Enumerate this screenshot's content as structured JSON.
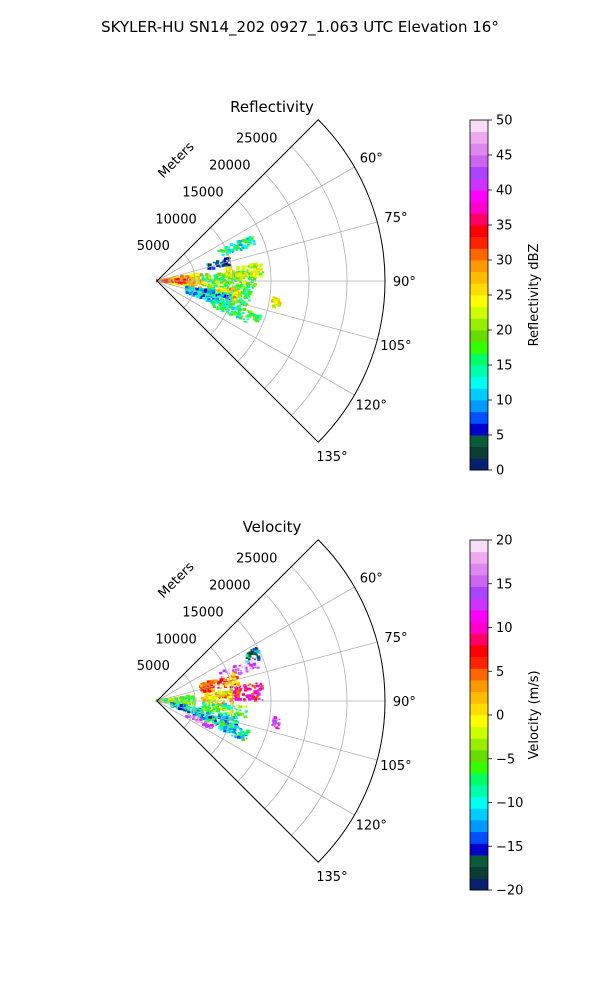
{
  "figure": {
    "suptitle": "SKYLER-HU  SN14_202  0927_1.063 UTC Elevation 16°"
  },
  "chart_data": [
    {
      "type": "heatmap",
      "projection": "polar-sector",
      "title": "Reflectivity",
      "radial_label": "Meters",
      "radial_ticks": [
        5000,
        10000,
        15000,
        20000,
        25000
      ],
      "radial_tick_labels": [
        "5000",
        "10000",
        "15000",
        "20000",
        "25000"
      ],
      "rmax": 30000,
      "azimuth_range_deg": [
        45,
        135
      ],
      "azimuth_ticks": [
        60,
        75,
        90,
        105,
        120,
        135
      ],
      "azimuth_tick_labels": [
        "60°",
        "75°",
        "90°",
        "105°",
        "120°",
        "135°"
      ],
      "grid": true,
      "colorbar": {
        "label": "Reflectivity dBZ",
        "range": [
          0,
          50
        ],
        "ticks": [
          0,
          5,
          10,
          15,
          20,
          25,
          30,
          35,
          40,
          45,
          50
        ],
        "tick_labels": [
          "0",
          "5",
          "10",
          "15",
          "20",
          "25",
          "30",
          "35",
          "40",
          "45",
          "50"
        ],
        "colors": [
          "#0a1f6e",
          "#0b3d33",
          "#0b5a3a",
          "#0000cc",
          "#0050ff",
          "#0099ff",
          "#00ccff",
          "#00ffee",
          "#00ffaa",
          "#00ff66",
          "#33ff00",
          "#66dd00",
          "#99ee00",
          "#ccff00",
          "#ffff00",
          "#ffdd00",
          "#ffbb00",
          "#ff9900",
          "#ff6600",
          "#ff2200",
          "#ff0000",
          "#ff0066",
          "#ff00cc",
          "#ff00ff",
          "#cc33ff",
          "#aa44ff",
          "#cc66ee",
          "#dd88ee",
          "#eeaaee",
          "#f8ddf8"
        ]
      },
      "echo_regions": [
        {
          "az": [
            80,
            100
          ],
          "r": [
            0,
            6000
          ],
          "value": 27
        },
        {
          "az": [
            85,
            95
          ],
          "r": [
            0,
            4000
          ],
          "value": 31
        },
        {
          "az": [
            83,
            95
          ],
          "r": [
            6000,
            13000
          ],
          "value": 19
        },
        {
          "az": [
            80,
            88
          ],
          "r": [
            9000,
            14000
          ],
          "value": 22
        },
        {
          "az": [
            95,
            106
          ],
          "r": [
            6000,
            12500
          ],
          "value": 17
        },
        {
          "az": [
            96,
            104
          ],
          "r": [
            8000,
            11000
          ],
          "value": 26
        },
        {
          "az": [
            100,
            112
          ],
          "r": [
            4000,
            10000
          ],
          "value": 11
        },
        {
          "az": [
            107,
            115
          ],
          "r": [
            8000,
            13000
          ],
          "value": 16
        },
        {
          "az": [
            64,
            70
          ],
          "r": [
            9000,
            14000
          ],
          "value": 14
        },
        {
          "az": [
            72,
            78
          ],
          "r": [
            7000,
            10000
          ],
          "value": 6
        },
        {
          "az": [
            98,
            103
          ],
          "r": [
            15500,
            16500
          ],
          "value": 24
        },
        {
          "az": [
            108,
            112
          ],
          "r": [
            13000,
            14500
          ],
          "value": 17
        }
      ]
    },
    {
      "type": "heatmap",
      "projection": "polar-sector",
      "title": "Velocity",
      "radial_label": "Meters",
      "radial_ticks": [
        5000,
        10000,
        15000,
        20000,
        25000
      ],
      "radial_tick_labels": [
        "5000",
        "10000",
        "15000",
        "20000",
        "25000"
      ],
      "rmax": 30000,
      "azimuth_range_deg": [
        45,
        135
      ],
      "azimuth_ticks": [
        60,
        75,
        90,
        105,
        120,
        135
      ],
      "azimuth_tick_labels": [
        "60°",
        "75°",
        "90°",
        "105°",
        "120°",
        "135°"
      ],
      "grid": true,
      "colorbar": {
        "label": "Velocity (m/s)",
        "range": [
          -20,
          20
        ],
        "ticks": [
          -20,
          -15,
          -10,
          -5,
          0,
          5,
          10,
          15,
          20
        ],
        "tick_labels": [
          "−20",
          "−15",
          "−10",
          "−5",
          "0",
          "5",
          "10",
          "15",
          "20"
        ],
        "colors": [
          "#0a1f6e",
          "#0b3d33",
          "#0b5a3a",
          "#0000cc",
          "#0050ff",
          "#0099ff",
          "#00ccff",
          "#00ffee",
          "#00ffaa",
          "#00ff66",
          "#33ff00",
          "#66dd00",
          "#99ee00",
          "#ccff00",
          "#ffff00",
          "#ffdd00",
          "#ffbb00",
          "#ff9900",
          "#ff6600",
          "#ff2200",
          "#ff0000",
          "#ff0066",
          "#ff00cc",
          "#ff00ff",
          "#cc33ff",
          "#aa44ff",
          "#cc66ee",
          "#dd88ee",
          "#eeaaee",
          "#f8ddf8"
        ]
      },
      "echo_regions": [
        {
          "az": [
            82,
            98
          ],
          "r": [
            0,
            5000
          ],
          "value": -4
        },
        {
          "az": [
            100,
            110
          ],
          "r": [
            2000,
            6000
          ],
          "value": -12
        },
        {
          "az": [
            82,
            93
          ],
          "r": [
            6000,
            10000
          ],
          "value": 1
        },
        {
          "az": [
            80,
            90
          ],
          "r": [
            10000,
            14000
          ],
          "value": 9
        },
        {
          "az": [
            93,
            102
          ],
          "r": [
            6000,
            12000
          ],
          "value": -6
        },
        {
          "az": [
            102,
            112
          ],
          "r": [
            5000,
            11000
          ],
          "value": -11
        },
        {
          "az": [
            108,
            115
          ],
          "r": [
            9000,
            13000
          ],
          "value": -9
        },
        {
          "az": [
            113,
            118
          ],
          "r": [
            4000,
            8000
          ],
          "value": 16
        },
        {
          "az": [
            66,
            72
          ],
          "r": [
            9000,
            14000
          ],
          "value": 16
        },
        {
          "az": [
            62,
            68
          ],
          "r": [
            13000,
            15000
          ],
          "value": -13
        },
        {
          "az": [
            70,
            80
          ],
          "r": [
            6000,
            11000
          ],
          "value": 4
        },
        {
          "az": [
            98,
            103
          ],
          "r": [
            15500,
            16500
          ],
          "value": 14
        }
      ]
    }
  ]
}
